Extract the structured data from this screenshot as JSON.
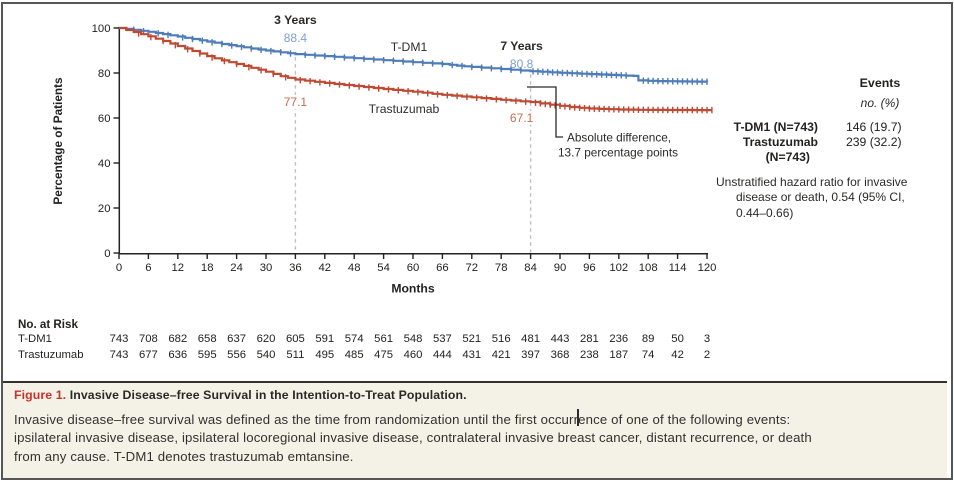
{
  "chart_data": {
    "type": "line",
    "subtype": "kaplan-meier-step",
    "title": "",
    "xlabel": "Months",
    "ylabel": "Percentage of Patients",
    "xlim": [
      0,
      120
    ],
    "ylim": [
      0,
      100
    ],
    "xticks": [
      0,
      6,
      12,
      18,
      24,
      30,
      36,
      42,
      48,
      54,
      60,
      66,
      72,
      78,
      84,
      90,
      96,
      102,
      108,
      114,
      120
    ],
    "yticks": [
      0,
      20,
      40,
      60,
      80,
      100
    ],
    "grid": false,
    "legend_position": "inline-curve-labels",
    "series": [
      {
        "name": "T-DM1",
        "color": "#4d7cb9",
        "label_color": "#7b9fd4",
        "points": [
          [
            0,
            100
          ],
          [
            3,
            99.2
          ],
          [
            6,
            98.3
          ],
          [
            9,
            97.3
          ],
          [
            12,
            96.2
          ],
          [
            15,
            95.1
          ],
          [
            18,
            94.0
          ],
          [
            21,
            92.9
          ],
          [
            24,
            91.9
          ],
          [
            27,
            90.9
          ],
          [
            30,
            90.0
          ],
          [
            33,
            89.2
          ],
          [
            36,
            88.4
          ],
          [
            42,
            87.5
          ],
          [
            48,
            86.6
          ],
          [
            54,
            85.7
          ],
          [
            60,
            84.8
          ],
          [
            66,
            84.0
          ],
          [
            69,
            83.3
          ],
          [
            72,
            82.7
          ],
          [
            78,
            81.8
          ],
          [
            84,
            80.8
          ],
          [
            90,
            80.1
          ],
          [
            96,
            79.5
          ],
          [
            102,
            79.0
          ],
          [
            105,
            78.7
          ],
          [
            106,
            76.7
          ],
          [
            110,
            76.4
          ],
          [
            120,
            76.1
          ]
        ],
        "censor_months": [
          3,
          5,
          8,
          10,
          13,
          15,
          17,
          19,
          21,
          23,
          25,
          27,
          29,
          31,
          33,
          35,
          38,
          40,
          42,
          44,
          46,
          48,
          50,
          52,
          54,
          56,
          58,
          60,
          62,
          64,
          66,
          68,
          70,
          72,
          74,
          76,
          78,
          80,
          82,
          84.5,
          85.5,
          86.5,
          87.5,
          88.5,
          89.5,
          90.5,
          91.5,
          92.5,
          93.5,
          94.5,
          95.5,
          96.5,
          97.5,
          98.5,
          99.5,
          100.5,
          101.5,
          102.5,
          103.5,
          107,
          108,
          109,
          110,
          111,
          112,
          113,
          114,
          115,
          116,
          117,
          118,
          119,
          120
        ]
      },
      {
        "name": "Trastuzumab",
        "color": "#be4a33",
        "label_color": "#cb6a51",
        "points": [
          [
            0,
            100
          ],
          [
            3,
            98.2
          ],
          [
            6,
            96.3
          ],
          [
            9,
            94.2
          ],
          [
            12,
            92.0
          ],
          [
            15,
            89.8
          ],
          [
            18,
            87.5
          ],
          [
            21,
            85.6
          ],
          [
            24,
            84.0
          ],
          [
            27,
            82.3
          ],
          [
            30,
            80.6
          ],
          [
            33,
            78.6
          ],
          [
            36,
            77.1
          ],
          [
            42,
            75.6
          ],
          [
            48,
            74.2
          ],
          [
            54,
            72.9
          ],
          [
            60,
            71.7
          ],
          [
            66,
            70.3
          ],
          [
            72,
            69.2
          ],
          [
            78,
            68.1
          ],
          [
            84,
            67.1
          ],
          [
            88,
            65.9
          ],
          [
            92,
            64.9
          ],
          [
            96,
            64.2
          ],
          [
            102,
            63.8
          ],
          [
            108,
            63.6
          ],
          [
            121,
            63.5
          ]
        ],
        "censor_months": [
          4,
          6.5,
          9,
          11.5,
          14,
          16.5,
          19,
          21.5,
          24,
          26.5,
          29,
          31.5,
          34,
          37,
          39,
          41,
          43,
          45,
          47,
          49,
          51,
          53,
          55,
          57,
          59,
          61,
          63,
          65,
          67,
          69,
          71,
          73,
          75,
          77,
          79,
          81,
          83,
          85,
          86,
          87,
          88,
          89,
          90,
          91,
          92,
          93,
          94,
          95,
          96,
          97,
          98,
          99,
          100,
          101,
          102,
          103,
          104,
          105,
          106,
          107,
          108,
          109,
          110,
          111,
          112,
          113,
          114,
          115,
          116,
          117,
          118,
          119,
          120,
          121
        ]
      }
    ],
    "annotations": {
      "milestones": [
        {
          "label": "3 Years",
          "month": 36,
          "values": [
            {
              "series": "T-DM1",
              "text": "88.4"
            },
            {
              "series": "Trastuzumab",
              "text": "77.1"
            }
          ]
        },
        {
          "label": "7 Years",
          "month": 84,
          "values": [
            {
              "series": "T-DM1",
              "text": "80.8"
            },
            {
              "series": "Trastuzumab",
              "text": "67.1"
            }
          ]
        }
      ],
      "difference_note": [
        "Absolute difference,",
        "13.7 percentage points"
      ]
    },
    "no_at_risk": {
      "header": "No. at Risk",
      "months": [
        0,
        6,
        12,
        18,
        24,
        30,
        36,
        42,
        48,
        54,
        60,
        66,
        72,
        78,
        84,
        90,
        96,
        102,
        108,
        114,
        120
      ],
      "rows": [
        {
          "label": "T-DM1",
          "values": [
            743,
            708,
            682,
            658,
            637,
            620,
            605,
            591,
            574,
            561,
            548,
            537,
            521,
            516,
            481,
            443,
            281,
            236,
            89,
            50,
            3
          ]
        },
        {
          "label": "Trastuzumab",
          "values": [
            743,
            677,
            636,
            595,
            556,
            540,
            511,
            495,
            485,
            475,
            460,
            444,
            431,
            421,
            397,
            368,
            238,
            187,
            74,
            42,
            2
          ]
        }
      ]
    }
  },
  "events_panel": {
    "title": "Events",
    "subtitle": "no. (%)",
    "rows": [
      {
        "label_lines": [
          "T-DM1 (N=743)"
        ],
        "value": "146 (19.7)"
      },
      {
        "label_lines": [
          "Trastuzumab",
          "(N=743)"
        ],
        "value": "239 (32.2)"
      }
    ],
    "hazard_lines": [
      "Unstratified hazard ratio for invasive",
      "disease or death, 0.54 (95% CI,",
      "0.44–0.66)"
    ]
  },
  "caption": {
    "tag": "Figure 1.",
    "title": "Invasive Disease–free Survival in the Intention-to-Treat Population.",
    "body_lines": [
      "Invasive disease–free survival was defined as the time from randomization until the first occurrence of one of the following events:",
      "ipsilateral invasive disease, ipsilateral locoregional invasive disease, contralateral invasive breast cancer, distant recurrence, or death",
      "from any cause. T-DM1 denotes trastuzumab emtansine."
    ]
  },
  "colors": {
    "tdm1": "#4d7cb9",
    "trastuzumab": "#be4a33",
    "figure_tag_red": "#c5342e",
    "caption_bg": "#f4f1e6",
    "axis": "#232220",
    "dashed_line": "#c0c0c0"
  }
}
